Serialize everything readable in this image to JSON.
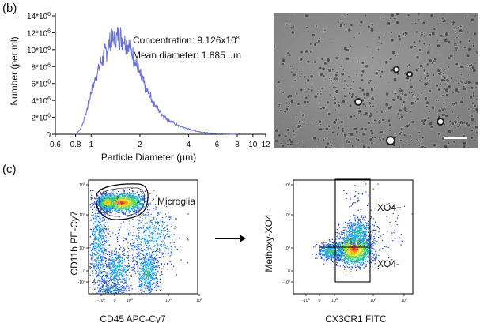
{
  "panel_b": {
    "label": "(b)",
    "chart_data": {
      "type": "line",
      "x_scale": "log",
      "xlabel": "Particle Diameter (µm)",
      "ylabel": "Number (per ml)",
      "x_ticks": [
        "0.6",
        "0.8",
        "1",
        "2",
        "4",
        "6",
        "8",
        "10",
        "12"
      ],
      "y_ticks_base": [
        "0",
        "2",
        "4",
        "6",
        "8",
        "10",
        "12",
        "14"
      ],
      "y_tick_suffix": "*10",
      "y_tick_exp": "6",
      "xlim": [
        0.6,
        12
      ],
      "ylim": [
        0,
        14
      ],
      "grid": false,
      "series": [
        {
          "color": "#6670d8",
          "x": [
            0.8,
            0.85,
            0.9,
            0.95,
            1.0,
            1.1,
            1.2,
            1.3,
            1.4,
            1.5,
            1.6,
            1.7,
            1.8,
            1.9,
            2.0,
            2.2,
            2.4,
            2.6,
            2.8,
            3.0,
            3.3,
            3.6,
            4.0,
            4.5,
            5.0,
            5.5,
            6.0,
            7.0,
            8.0
          ],
          "y": [
            0,
            0.5,
            1.6,
            3.2,
            5.0,
            7.6,
            9.4,
            10.6,
            11.3,
            11.6,
            11.3,
            10.5,
            9.4,
            8.2,
            7.0,
            5.2,
            3.9,
            2.9,
            2.2,
            1.7,
            1.2,
            0.9,
            0.6,
            0.35,
            0.2,
            0.12,
            0.07,
            0.03,
            0.0
          ]
        }
      ],
      "annotation_line1_prefix": "Concentration: 9.126x10",
      "annotation_line1_exp": "8",
      "annotation_line2": "Mean diameter: 1.885 µm"
    },
    "micrograph": {
      "description_icon": "microscopy-image",
      "scale_bar_color": "#ffffff"
    }
  },
  "panel_c": {
    "label": "(c)",
    "arrow_icon": "right-arrow-icon",
    "plot_left": {
      "xlabel": "CD45 APC-Cy7",
      "ylabel": "CD11b PE-Cy7",
      "gate_label": "Microglia",
      "x_ticks": [
        "-10",
        "0",
        "10",
        "10",
        "10"
      ],
      "x_tick_exps": [
        "3",
        "",
        "3",
        "4",
        "5"
      ],
      "y_ticks": [
        "10",
        "10",
        "10",
        "0",
        "-10"
      ],
      "y_tick_exps": [
        "5",
        "4",
        "3",
        "",
        "3"
      ]
    },
    "plot_right": {
      "xlabel": "CX3CR1 FITC",
      "ylabel": "Methoxy-XO4",
      "gate_label_pos": "XO4+",
      "gate_label_neg": "XO4-",
      "x_ticks": [
        "-10",
        "0",
        "10",
        "10",
        "10"
      ],
      "x_tick_exps": [
        "3",
        "",
        "3",
        "4",
        "5"
      ],
      "y_ticks": [
        "10",
        "10",
        "10",
        "0",
        "-10"
      ],
      "y_tick_exps": [
        "5",
        "4",
        "3",
        "",
        "3"
      ]
    }
  }
}
